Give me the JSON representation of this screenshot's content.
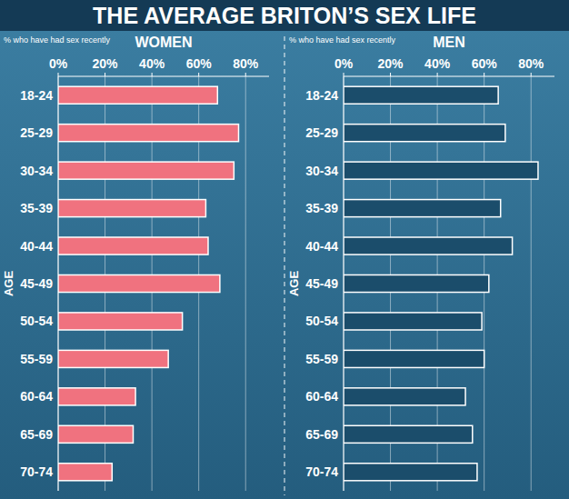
{
  "title": "THE AVERAGE BRITON’S SEX LIFE",
  "chart_data": [
    {
      "type": "bar",
      "orientation": "horizontal",
      "title": "WOMEN",
      "x_label": "% who have had sex recently",
      "y_label": "AGE",
      "categories": [
        "18-24",
        "25-29",
        "30-34",
        "35-39",
        "40-44",
        "45-49",
        "50-54",
        "55-59",
        "60-64",
        "65-69",
        "70-74"
      ],
      "values": [
        68,
        77,
        75,
        63,
        64,
        69,
        53,
        47,
        33,
        32,
        23
      ],
      "color": "#f0727f",
      "xlim": [
        0,
        90
      ],
      "xticks": [
        {
          "value": 0,
          "label": "0%"
        },
        {
          "value": 20,
          "label": "20%"
        },
        {
          "value": 40,
          "label": "40%"
        },
        {
          "value": 60,
          "label": "60%"
        },
        {
          "value": 80,
          "label": "80%"
        }
      ],
      "grid": true
    },
    {
      "type": "bar",
      "orientation": "horizontal",
      "title": "MEN",
      "x_label": "% who have had sex recently",
      "y_label": "AGE",
      "categories": [
        "18-24",
        "25-29",
        "30-34",
        "35-39",
        "40-44",
        "45-49",
        "50-54",
        "55-59",
        "60-64",
        "65-69",
        "70-74"
      ],
      "values": [
        66,
        69,
        83,
        67,
        72,
        62,
        59,
        60,
        52,
        55,
        57
      ],
      "color": "#1b4d6b",
      "xlim": [
        0,
        90
      ],
      "xticks": [
        {
          "value": 0,
          "label": "0%"
        },
        {
          "value": 20,
          "label": "20%"
        },
        {
          "value": 40,
          "label": "40%"
        },
        {
          "value": 60,
          "label": "60%"
        },
        {
          "value": 80,
          "label": "80%"
        }
      ],
      "grid": true
    }
  ]
}
